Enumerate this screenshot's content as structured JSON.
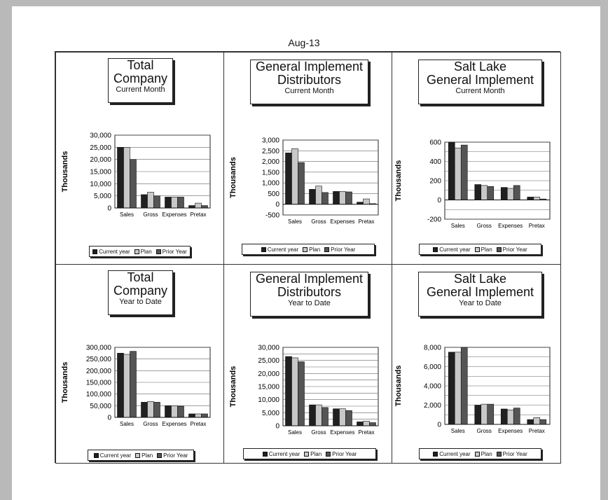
{
  "page_title": "Aug-13",
  "legend": [
    "Current year",
    "Plan",
    "Prior Year"
  ],
  "colors": {
    "current_year": "#202020",
    "plan": "#c8c8c8",
    "prior_year": "#555555"
  },
  "panels": [
    {
      "title_line1": "Total",
      "title_line2": "Company",
      "subtitle": "Current Month"
    },
    {
      "title_line1": "General Implement",
      "title_line2": "Distributors",
      "subtitle": "Current Month"
    },
    {
      "title_line1": "Salt Lake",
      "title_line2": "General Implement",
      "subtitle": "Current Month"
    },
    {
      "title_line1": "Total",
      "title_line2": "Company",
      "subtitle": "Year to Date"
    },
    {
      "title_line1": "General Implement",
      "title_line2": "Distributors",
      "subtitle": "Year to Date"
    },
    {
      "title_line1": "Salt Lake",
      "title_line2": "General Implement",
      "subtitle": "Year to Date"
    }
  ],
  "chart_data": [
    {
      "type": "bar",
      "title": "Total Company Current Month",
      "categories": [
        "Sales",
        "Gross",
        "Expenses",
        "Pretax"
      ],
      "series": [
        {
          "name": "Current year",
          "values": [
            25000,
            5500,
            4500,
            1000
          ]
        },
        {
          "name": "Plan",
          "values": [
            25000,
            6500,
            4500,
            2000
          ]
        },
        {
          "name": "Prior Year",
          "values": [
            20000,
            5000,
            4500,
            1000
          ]
        }
      ],
      "ylabel": "Thousands",
      "yticks": [
        "30,000",
        "25,000",
        "20,000",
        "15,000",
        "10,000",
        "5,000",
        "0"
      ],
      "ylim": [
        0,
        30000
      ],
      "ystep": 5000
    },
    {
      "type": "bar",
      "title": "General Implement Distributors Current Month",
      "categories": [
        "Sales",
        "Gross",
        "Expenses",
        "Pretax"
      ],
      "series": [
        {
          "name": "Current year",
          "values": [
            2400,
            700,
            600,
            100
          ]
        },
        {
          "name": "Plan",
          "values": [
            2600,
            850,
            600,
            250
          ]
        },
        {
          "name": "Prior Year",
          "values": [
            1950,
            550,
            580,
            30
          ]
        }
      ],
      "ylabel": "Thousands",
      "yticks": [
        "3,000",
        "2,500",
        "2,000",
        "1,500",
        "1,000",
        "500",
        "0",
        "-500"
      ],
      "ylim": [
        -500,
        3000
      ],
      "ystep": 500
    },
    {
      "type": "bar",
      "title": "Salt Lake General Implement Current Month",
      "categories": [
        "Sales",
        "Gross",
        "Expenses",
        "Pretax"
      ],
      "series": [
        {
          "name": "Current year",
          "values": [
            600,
            160,
            130,
            30
          ]
        },
        {
          "name": "Plan",
          "values": [
            540,
            150,
            120,
            30
          ]
        },
        {
          "name": "Prior Year",
          "values": [
            570,
            140,
            150,
            10
          ]
        }
      ],
      "ylabel": "Thousands",
      "yticks": [
        "600",
        "400",
        "200",
        "0",
        "-200"
      ],
      "ylim": [
        -200,
        600
      ],
      "ystep": 100
    },
    {
      "type": "bar",
      "title": "Total Company Year to Date",
      "categories": [
        "Sales",
        "Gross",
        "Expenses",
        "Pretax"
      ],
      "series": [
        {
          "name": "Current year",
          "values": [
            275000,
            65000,
            50000,
            15000
          ]
        },
        {
          "name": "Plan",
          "values": [
            270000,
            68000,
            50000,
            15000
          ]
        },
        {
          "name": "Prior Year",
          "values": [
            283000,
            65000,
            48000,
            15000
          ]
        }
      ],
      "ylabel": "Thousands",
      "yticks": [
        "300,000",
        "250,000",
        "200,000",
        "150,000",
        "100,000",
        "50,000",
        "0"
      ],
      "ylim": [
        0,
        300000
      ],
      "ystep": 50000
    },
    {
      "type": "bar",
      "title": "General Implement Distributors Year to Date",
      "categories": [
        "Sales",
        "Gross",
        "Expenses",
        "Pretax"
      ],
      "series": [
        {
          "name": "Current year",
          "values": [
            26500,
            8000,
            6500,
            1500
          ]
        },
        {
          "name": "Plan",
          "values": [
            26000,
            8000,
            6500,
            1800
          ]
        },
        {
          "name": "Prior Year",
          "values": [
            24500,
            7000,
            5800,
            1200
          ]
        }
      ],
      "ylabel": "Thousands",
      "yticks": [
        "30,000",
        "25,000",
        "20,000",
        "15,000",
        "10,000",
        "5,000",
        "0"
      ],
      "ylim": [
        0,
        30000
      ],
      "ystep": 2500
    },
    {
      "type": "bar",
      "title": "Salt Lake General Implement Year to Date",
      "categories": [
        "Sales",
        "Gross",
        "Expenses",
        "Pretax"
      ],
      "series": [
        {
          "name": "Current year",
          "values": [
            7500,
            2000,
            1600,
            500
          ]
        },
        {
          "name": "Plan",
          "values": [
            7500,
            2100,
            1500,
            700
          ]
        },
        {
          "name": "Prior Year",
          "values": [
            8000,
            2100,
            1700,
            500
          ]
        }
      ],
      "ylabel": "Thousands",
      "yticks": [
        "8,000",
        "6,000",
        "4,000",
        "2,000",
        "0"
      ],
      "ylim": [
        0,
        8000
      ],
      "ystep": 1000
    }
  ]
}
